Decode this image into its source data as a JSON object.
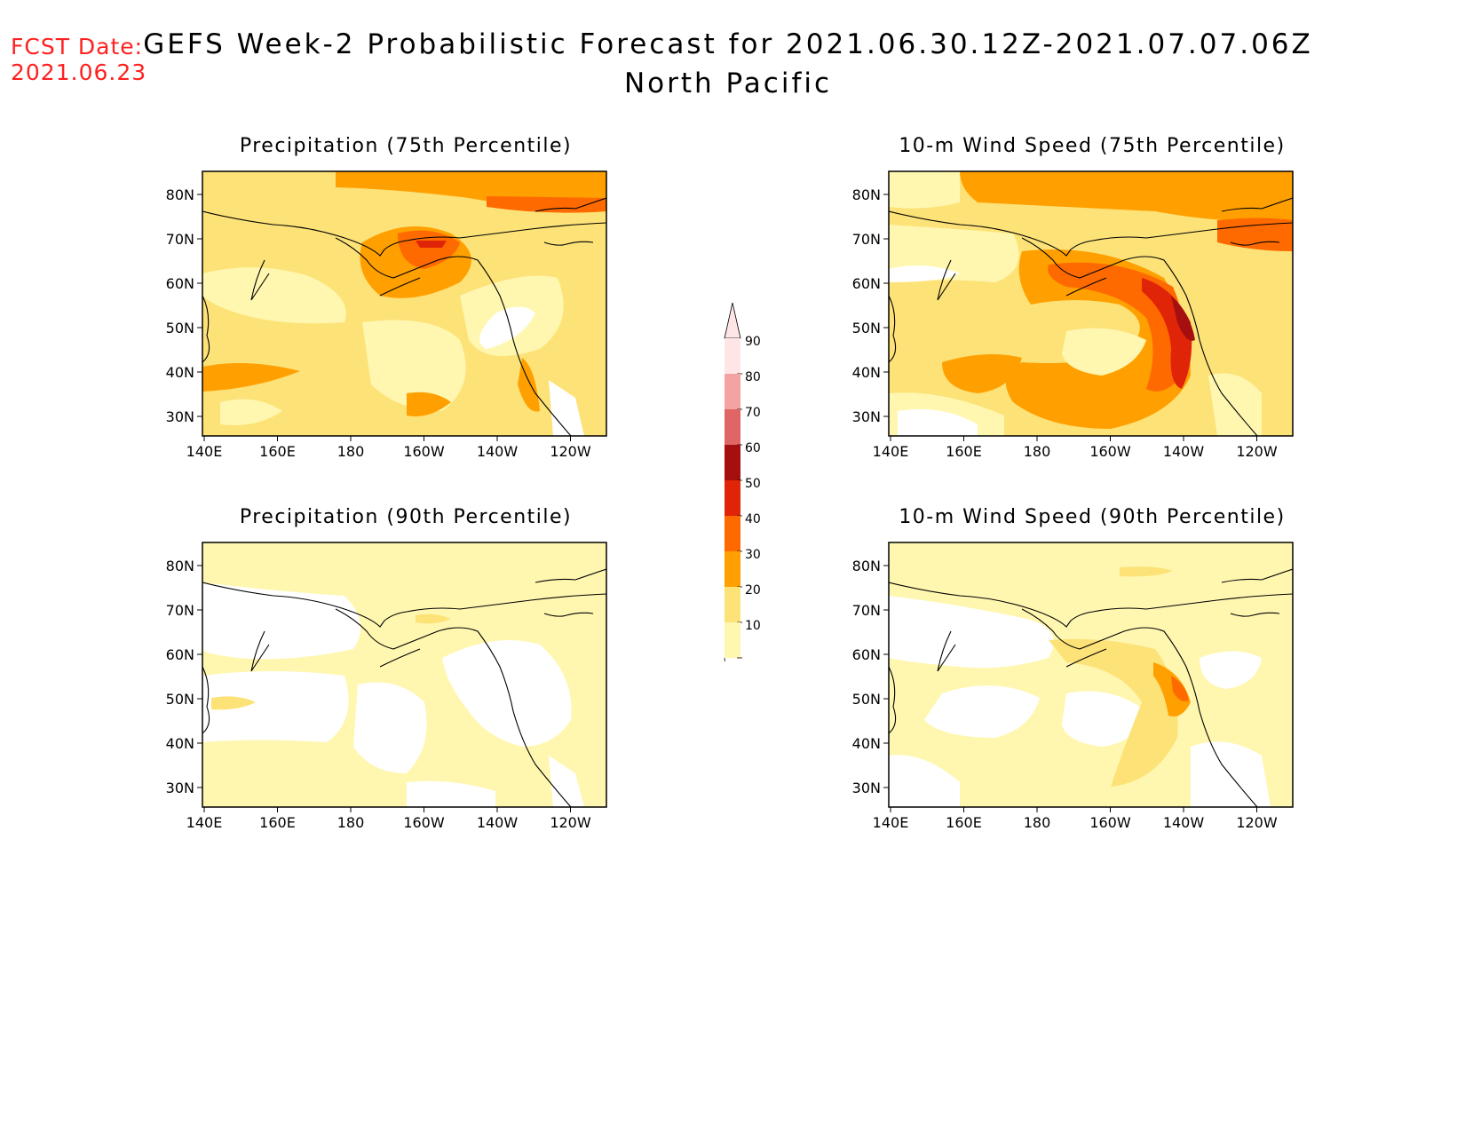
{
  "header": {
    "fcst_label": "FCST Date:",
    "fcst_date": "2021.06.23",
    "title": "GEFS Week-2 Probabilistic Forecast for 2021.06.30.12Z-2021.07.07.06Z",
    "subtitle": "North Pacific"
  },
  "panels": [
    {
      "title": "Precipitation (75th Percentile)"
    },
    {
      "title": "10-m Wind Speed (75th Percentile)"
    },
    {
      "title": "Precipitation (90th Percentile)"
    },
    {
      "title": "10-m Wind Speed (90th Percentile)"
    }
  ],
  "axes": {
    "lat_labels": [
      "80N",
      "70N",
      "60N",
      "50N",
      "40N",
      "30N"
    ],
    "lon_labels": [
      "140E",
      "160E",
      "180",
      "160W",
      "140W",
      "120W"
    ]
  },
  "colorbar": {
    "labels": [
      "90",
      "80",
      "70",
      "60",
      "50",
      "40",
      "30",
      "20",
      "10"
    ],
    "colors": [
      "#ffe6e6",
      "#f4a3a3",
      "#e06666",
      "#a50f0f",
      "#e02408",
      "#ff6a00",
      "#ffa000",
      "#fde278",
      "#fff7b0"
    ]
  },
  "palette": {
    "white": "#ffffff",
    "p10": "#fff7b0",
    "p20": "#fde278",
    "p30": "#ffa000",
    "p40": "#ff6a00",
    "p50": "#e02408",
    "p60": "#a50f0f",
    "fcst_text": "#ff2020"
  }
}
